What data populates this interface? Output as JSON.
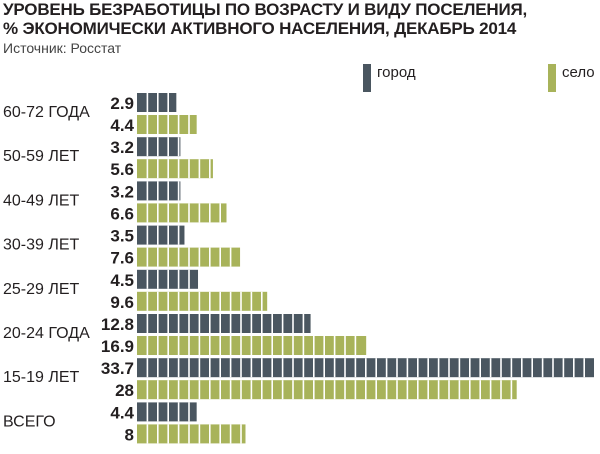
{
  "header": {
    "title_line1": "УРОВЕНЬ БЕЗРАБОТИЦЫ ПО ВОЗРАСТУ И ВИДУ ПОСЕЛЕНИЯ,",
    "title_line2": "% ЭКОНОМИЧЕСКИ АКТИВНОГО НАСЕЛЕНИЯ, ДЕКАБРЬ 2014",
    "source": "Источник: Росстат"
  },
  "colors": {
    "city": "#4a5660",
    "village": "#a8b35a",
    "separator": "#ffffff"
  },
  "chart_data": {
    "type": "bar",
    "orientation": "horizontal",
    "title": "УРОВЕНЬ БЕЗРАБОТИЦЫ ПО ВОЗРАСТУ И ВИДУ ПОСЕЛЕНИЯ, % ЭКОНОМИЧЕСКИ АКТИВНОГО НАСЕЛЕНИЯ, ДЕКАБРЬ 2014",
    "categories": [
      "60-72 ГОДА",
      "50-59 ЛЕТ",
      "40-49 ЛЕТ",
      "30-39 ЛЕТ",
      "25-29 ЛЕТ",
      "20-24 ГОДА",
      "15-19 ЛЕТ",
      "ВСЕГО"
    ],
    "series": [
      {
        "name": "город",
        "values": [
          2.9,
          3.2,
          3.2,
          3.5,
          4.5,
          12.8,
          33.7,
          4.4
        ],
        "labels": [
          "2.9",
          "3.2",
          "3.2",
          "3.5",
          "4.5",
          "12.8",
          "33.7",
          "4.4"
        ]
      },
      {
        "name": "село",
        "values": [
          4.4,
          5.6,
          6.6,
          7.6,
          9.6,
          16.9,
          28,
          8
        ],
        "labels": [
          "4.4",
          "5.6",
          "6.6",
          "7.6",
          "9.6",
          "16.9",
          "28",
          "8"
        ]
      }
    ],
    "xlim": [
      0,
      33.7
    ],
    "legend": "top-right",
    "grid": false
  }
}
